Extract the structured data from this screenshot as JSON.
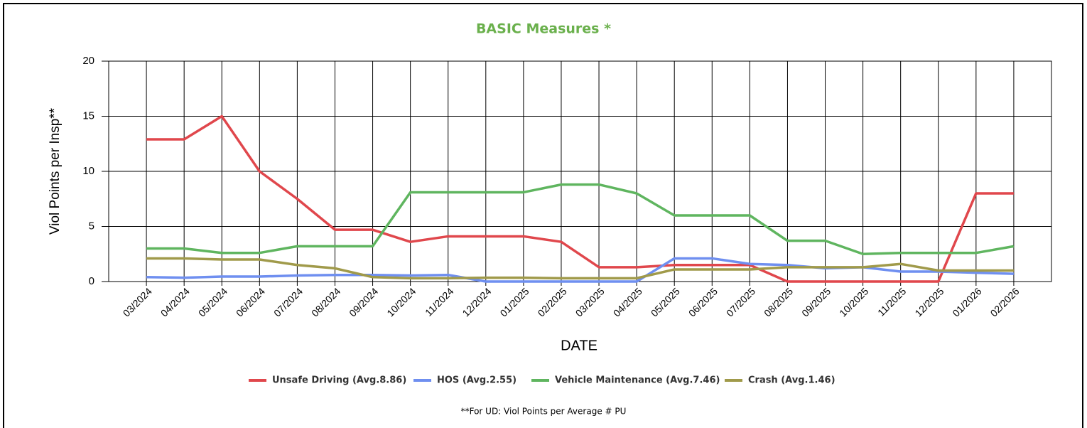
{
  "chart_data": {
    "type": "line",
    "title": "BASIC Measures *",
    "y_label": "Viol Points per Insp**",
    "x_label": "DATE",
    "footnote": "**For UD: Viol Points per Average # PU",
    "categories": [
      "03/2024",
      "04/2024",
      "05/2024",
      "06/2024",
      "07/2024",
      "08/2024",
      "09/2024",
      "10/2024",
      "11/2024",
      "12/2024",
      "01/2025",
      "02/2025",
      "03/2025",
      "04/2025",
      "05/2025",
      "06/2025",
      "07/2025",
      "08/2025",
      "09/2025",
      "10/2025",
      "11/2025",
      "12/2025",
      "01/2026",
      "02/2026"
    ],
    "series": [
      {
        "name": "Unsafe Driving (Avg.8.86)",
        "color": "#e0474c",
        "values": [
          12.9,
          12.9,
          15,
          10,
          7.5,
          4.7,
          4.7,
          3.6,
          4.1,
          4.1,
          4.1,
          3.6,
          1.3,
          1.3,
          1.5,
          1.5,
          1.5,
          0,
          0,
          0,
          0,
          0,
          8,
          8
        ]
      },
      {
        "name": "HOS (Avg.2.55)",
        "color": "#6f8ff0",
        "values": [
          0.4,
          0.35,
          0.45,
          0.45,
          0.55,
          0.6,
          0.6,
          0.55,
          0.6,
          0,
          0,
          0,
          0,
          0,
          2.1,
          2.1,
          1.6,
          1.5,
          1.2,
          1.3,
          0.9,
          0.9,
          0.8,
          0.7
        ]
      },
      {
        "name": "Vehicle Maintenance (Avg.7.46)",
        "color": "#5fb55f",
        "values": [
          3,
          3,
          2.6,
          2.6,
          3.2,
          3.2,
          3.2,
          8.1,
          8.1,
          8.1,
          8.1,
          8.8,
          8.8,
          8,
          6,
          6,
          6,
          3.7,
          3.7,
          2.5,
          2.6,
          2.6,
          2.6,
          3.2
        ]
      },
      {
        "name": "Crash (Avg.1.46)",
        "color": "#a09a4a",
        "values": [
          2.1,
          2.1,
          2,
          2,
          1.5,
          1.2,
          0.4,
          0.3,
          0.3,
          0.35,
          0.35,
          0.3,
          0.3,
          0.3,
          1.1,
          1.1,
          1.1,
          1.3,
          1.3,
          1.3,
          1.6,
          1.0,
          1.0,
          1.0
        ]
      }
    ],
    "ylim": [
      0,
      20
    ],
    "yticks": [
      0,
      5,
      10,
      15,
      20
    ],
    "grid": true
  }
}
